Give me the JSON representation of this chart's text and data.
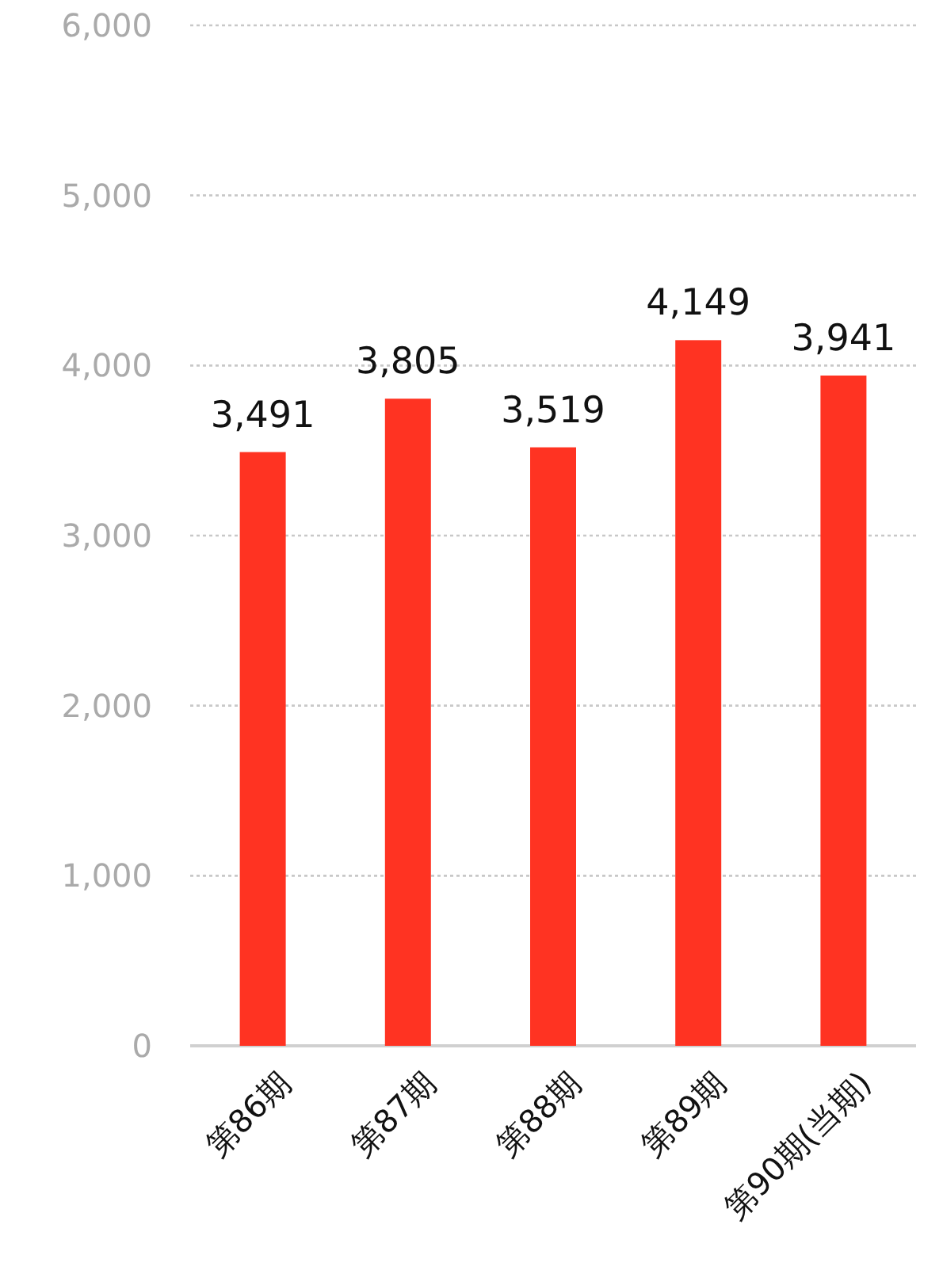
{
  "chart_data": {
    "type": "bar",
    "categories": [
      "第86期",
      "第87期",
      "第88期",
      "第89期",
      "第90期(当期)"
    ],
    "values": [
      3491,
      3805,
      3519,
      4149,
      3941
    ],
    "value_labels": [
      "3,491",
      "3,805",
      "3,519",
      "4,149",
      "3,941"
    ],
    "color": "#ff3322",
    "ylim": [
      0,
      6000
    ],
    "yticks": [
      0,
      {
        "value": 1000,
        "label": "1,000"
      },
      {
        "value": 2000,
        "label": "2,000"
      },
      {
        "value": 3000,
        "label": "3,000"
      },
      {
        "value": 4000,
        "label": "4,000"
      },
      {
        "value": 5000,
        "label": "5,000"
      },
      {
        "value": 6000,
        "label": "6,000"
      }
    ],
    "grid": "y"
  }
}
